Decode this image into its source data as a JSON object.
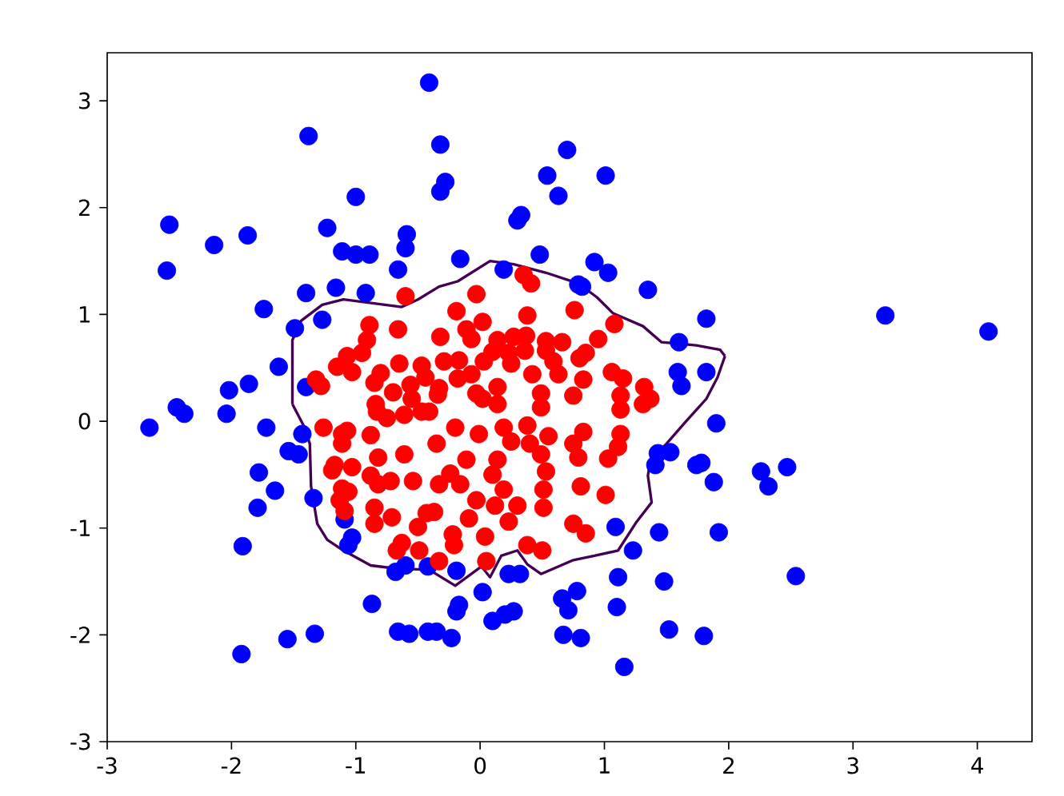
{
  "chart_data": {
    "type": "scatter",
    "xlim": [
      -3.0,
      4.44
    ],
    "ylim": [
      -3.0,
      3.45
    ],
    "xticks": [
      -3,
      -2,
      -1,
      0,
      1,
      2,
      3,
      4
    ],
    "yticks": [
      -3,
      -2,
      -1,
      0,
      1,
      2,
      3
    ],
    "marker": "circle",
    "series": [
      {
        "color": "#0000ff",
        "x": [
          -0.41,
          -1.38,
          -0.32,
          -1.0,
          -2.5,
          -2.14,
          -1.87,
          -1.23,
          -1.11,
          -1.0,
          -0.89,
          -0.59,
          -0.6,
          -0.66,
          -2.52,
          -1.4,
          -1.16,
          -0.92,
          -1.74,
          -1.27,
          -1.49,
          -1.62,
          -1.86,
          -2.02,
          -1.4,
          -2.44,
          -2.38,
          -2.66,
          -2.04,
          -1.72,
          -1.43,
          -1.54,
          -1.46,
          -1.78,
          -1.65,
          -1.79,
          -1.34,
          -1.09,
          -1.03,
          -1.06,
          -1.91,
          -0.68,
          -0.6,
          -0.42,
          -0.87,
          -0.66,
          -0.57,
          -0.42,
          -1.33,
          -1.55,
          -1.92,
          -0.19,
          0.02,
          -0.17,
          -0.19,
          -0.35,
          -0.23,
          0.23,
          0.32,
          0.1,
          0.2,
          0.27,
          0.66,
          0.78,
          0.71,
          0.67,
          0.81,
          1.09,
          1.23,
          1.11,
          1.1,
          1.16,
          1.44,
          1.48,
          1.52,
          1.8,
          1.92,
          1.9,
          1.43,
          1.53,
          1.41,
          1.74,
          1.78,
          1.88,
          2.26,
          2.47,
          2.32,
          2.54,
          3.26,
          4.09,
          1.6,
          1.82,
          1.59,
          1.62,
          1.82,
          1.35,
          0.92,
          1.03,
          0.79,
          0.82,
          0.48,
          0.19,
          -0.16,
          0.33,
          0.3,
          0.63,
          0.54,
          1.01,
          0.7,
          -0.28,
          -0.32
        ],
        "values": [
          3.17,
          2.67,
          2.59,
          2.1,
          1.84,
          1.65,
          1.74,
          1.81,
          1.59,
          1.56,
          1.56,
          1.75,
          1.62,
          1.42,
          1.41,
          1.2,
          1.25,
          1.2,
          1.05,
          0.95,
          0.87,
          0.51,
          0.35,
          0.29,
          0.32,
          0.13,
          0.07,
          -0.06,
          0.07,
          -0.06,
          -0.12,
          -0.28,
          -0.31,
          -0.48,
          -0.65,
          -0.81,
          -0.72,
          -0.92,
          -1.09,
          -1.16,
          -1.17,
          -1.41,
          -1.35,
          -1.36,
          -1.71,
          -1.97,
          -1.99,
          -1.97,
          -1.99,
          -2.04,
          -2.18,
          -1.4,
          -1.6,
          -1.72,
          -1.78,
          -1.97,
          -2.03,
          -1.43,
          -1.43,
          -1.87,
          -1.81,
          -1.78,
          -1.66,
          -1.59,
          -1.77,
          -2.0,
          -2.03,
          -0.99,
          -1.21,
          -1.46,
          -1.74,
          -2.3,
          -1.04,
          -1.5,
          -1.95,
          -2.01,
          -1.04,
          -0.02,
          -0.3,
          -0.29,
          -0.41,
          -0.41,
          -0.39,
          -0.57,
          -0.47,
          -0.43,
          -0.61,
          -1.45,
          0.99,
          0.84,
          0.74,
          0.96,
          0.46,
          0.33,
          0.46,
          1.23,
          1.49,
          1.39,
          1.28,
          1.26,
          1.56,
          1.42,
          1.52,
          1.93,
          1.88,
          2.11,
          2.3,
          2.3,
          2.54,
          2.24,
          2.15
        ]
      },
      {
        "color": "#ff0000",
        "x": [
          -0.6,
          -0.89,
          -0.66,
          -0.91,
          -0.95,
          -1.07,
          -1.15,
          -1.03,
          -0.8,
          -0.65,
          -0.47,
          -1.32,
          -1.28,
          -0.85,
          -0.7,
          -0.56,
          -0.84,
          -0.55,
          -1.26,
          -1.11,
          -1.07,
          -1.11,
          -0.88,
          -0.83,
          -0.75,
          -0.61,
          -0.47,
          -0.82,
          -0.61,
          -1.17,
          -1.19,
          -1.03,
          -0.88,
          -0.82,
          -0.72,
          -0.54,
          -1.11,
          -1.06,
          -1.13,
          -1.09,
          -0.85,
          -0.85,
          -0.71,
          -0.5,
          -0.63,
          -0.67,
          -0.49,
          -0.43,
          0.35,
          0.41,
          -0.03,
          -0.19,
          0.38,
          0.76,
          1.08,
          -0.11,
          0.02,
          -0.32,
          -0.07,
          0.14,
          0.27,
          0.37,
          0.53,
          0.66,
          0.95,
          0.1,
          0.23,
          0.36,
          0.53,
          0.85,
          0.03,
          0.25,
          0.59,
          0.8,
          -0.29,
          -0.17,
          1.06,
          1.15,
          1.32,
          0.42,
          0.63,
          0.83,
          -0.07,
          -0.18,
          -0.33,
          -0.44,
          0.14,
          0.49,
          0.75,
          1.13,
          1.37,
          0.02,
          -0.34,
          -0.03,
          0.14,
          0.49,
          1.13,
          1.31,
          -0.41,
          -0.2,
          -0.01,
          0.19,
          0.38,
          0.55,
          0.83,
          1.13,
          -0.35,
          0.25,
          0.4,
          0.75,
          1.11,
          1.03,
          -0.11,
          0.14,
          0.49,
          0.79,
          -0.24,
          0.1,
          0.53,
          -0.33,
          -0.16,
          0.19,
          0.51,
          0.81,
          1.01,
          -0.03,
          0.12,
          0.3,
          0.51,
          -0.37,
          -0.09,
          0.23,
          0.75,
          -0.22,
          0.04,
          0.85,
          -0.21,
          0.38,
          0.5,
          -0.33,
          0.05
        ],
        "values": [
          1.17,
          0.9,
          0.86,
          0.76,
          0.64,
          0.61,
          0.51,
          0.46,
          0.45,
          0.54,
          0.52,
          0.39,
          0.33,
          0.36,
          0.27,
          0.34,
          0.16,
          0.21,
          -0.06,
          -0.12,
          -0.09,
          -0.21,
          -0.13,
          0.09,
          0.03,
          0.06,
          0.09,
          -0.34,
          -0.31,
          -0.41,
          -0.46,
          -0.43,
          -0.51,
          -0.59,
          -0.56,
          -0.56,
          -0.63,
          -0.66,
          -0.74,
          -0.84,
          -0.81,
          -0.96,
          -0.9,
          -0.99,
          -1.14,
          -1.21,
          -1.21,
          -0.86,
          1.37,
          1.29,
          1.19,
          1.03,
          0.99,
          1.04,
          0.91,
          0.86,
          0.93,
          0.79,
          0.77,
          0.76,
          0.79,
          0.8,
          0.75,
          0.74,
          0.77,
          0.65,
          0.64,
          0.66,
          0.66,
          0.64,
          0.56,
          0.54,
          0.56,
          0.59,
          0.56,
          0.57,
          0.46,
          0.4,
          0.32,
          0.44,
          0.44,
          0.39,
          0.44,
          0.4,
          0.31,
          0.41,
          0.32,
          0.26,
          0.24,
          0.24,
          0.21,
          0.21,
          0.25,
          0.26,
          0.16,
          0.13,
          0.11,
          0.16,
          0.09,
          -0.06,
          -0.12,
          -0.06,
          -0.04,
          -0.14,
          -0.1,
          -0.12,
          -0.21,
          -0.19,
          -0.21,
          -0.21,
          -0.24,
          -0.35,
          -0.36,
          -0.36,
          -0.31,
          -0.34,
          -0.49,
          -0.5,
          -0.47,
          -0.59,
          -0.59,
          -0.64,
          -0.64,
          -0.61,
          -0.69,
          -0.74,
          -0.79,
          -0.79,
          -0.81,
          -0.85,
          -0.91,
          -0.94,
          -0.96,
          -1.06,
          -1.08,
          -1.05,
          -1.16,
          -1.16,
          -1.21,
          -1.31,
          -1.31
        ]
      },
      {
        "type": "line",
        "color": "#440154",
        "marker": "none",
        "x": [
          -1.51,
          -1.51,
          -1.44,
          -1.27,
          -1.1,
          -0.63,
          -0.5,
          -0.33,
          -0.18,
          0.08,
          0.27,
          0.53,
          0.79,
          0.94,
          1.07,
          1.31,
          1.46,
          1.74,
          1.93,
          1.97
        ],
        "values": [
          0.16,
          0.76,
          0.94,
          1.09,
          1.14,
          1.07,
          1.14,
          1.26,
          1.31,
          1.5,
          1.47,
          1.39,
          1.29,
          1.16,
          1.01,
          0.89,
          0.74,
          0.71,
          0.67,
          0.61
        ]
      },
      {
        "type": "line",
        "color": "#440154",
        "marker": "none",
        "x": [
          -1.51,
          -1.42,
          -1.37,
          -1.36,
          -1.31,
          -1.23,
          -1.1,
          -0.88,
          -0.67,
          -0.41,
          -0.2,
          0.01,
          0.08,
          0.17,
          0.3,
          0.38,
          0.49,
          0.75,
          0.92,
          1.11,
          1.26,
          1.38,
          1.35,
          1.37,
          1.5,
          1.65,
          1.82,
          1.91,
          1.97
        ],
        "values": [
          0.16,
          -0.04,
          -0.21,
          -0.61,
          -0.96,
          -1.11,
          -1.21,
          -1.35,
          -1.38,
          -1.39,
          -1.54,
          -1.36,
          -1.46,
          -1.26,
          -1.21,
          -1.34,
          -1.43,
          -1.3,
          -1.26,
          -1.21,
          -0.94,
          -0.76,
          -0.51,
          -0.36,
          -0.21,
          -0.01,
          0.21,
          0.41,
          0.61
        ]
      }
    ]
  }
}
